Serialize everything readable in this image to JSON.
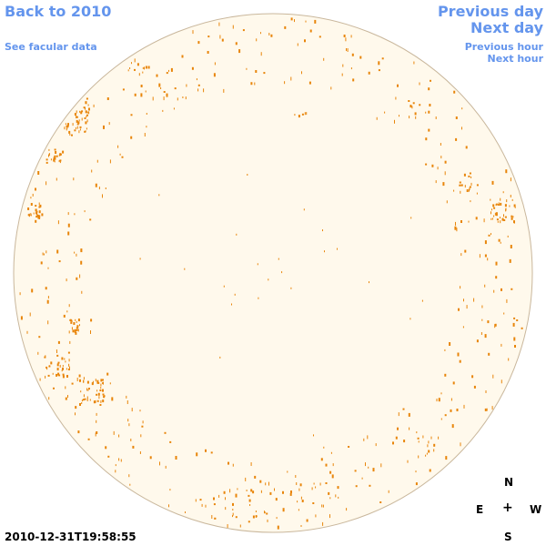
{
  "nav": {
    "back_label": "Back to 2010",
    "facular_label": "See facular data",
    "prev_day_label": "Previous day",
    "next_day_label": "Next day",
    "prev_hour_label": "Previous hour",
    "next_hour_label": "Next hour"
  },
  "compass": {
    "north": "N",
    "south": "S",
    "east": "E",
    "west": "W",
    "center": "+"
  },
  "timestamp": "2010-12-31T19:58:55",
  "colors": {
    "link": "#6495ED",
    "disk_fill": "#FFF9EC",
    "disk_stroke": "#C9B79C",
    "facula": "#E8850A"
  }
}
